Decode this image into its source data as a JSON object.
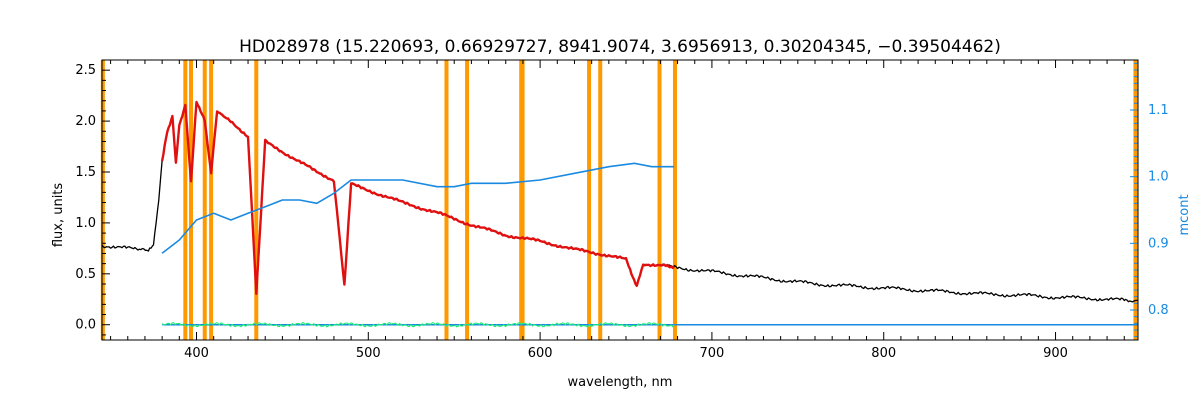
{
  "chart_data": {
    "type": "line",
    "title": "HD028978    (15.220693, 0.66929727, 8941.9074, 3.6956913, 0.30204345, −0.39504462)",
    "xlabel": "wavelength, nm",
    "ylabel": "flux, units",
    "y2label": "mcont",
    "xlim": [
      345,
      948
    ],
    "ylim": [
      -0.15,
      2.6
    ],
    "y2lim": [
      0.755,
      1.175
    ],
    "xticks": [
      400,
      500,
      600,
      700,
      800,
      900
    ],
    "yticks": [
      0.0,
      0.5,
      1.0,
      1.5,
      2.0,
      2.5
    ],
    "ytick_labels": [
      "0.0",
      "0.5",
      "1.0",
      "1.5",
      "2.0",
      "2.5"
    ],
    "y2ticks": [
      0.8,
      0.9,
      1.0,
      1.1
    ],
    "y2tick_labels": [
      "0.8",
      "0.9",
      "1.0",
      "1.1"
    ],
    "grid": false,
    "colors": {
      "observed": "#000000",
      "model": "#e01010",
      "residual": "#22ee77",
      "mcont": "#1a8ae0",
      "mask": "#ff9900"
    },
    "mask_lines": [
      345.5,
      393.5,
      396.8,
      404.8,
      408.5,
      434.8,
      545.5,
      557.5,
      589.0,
      589.8,
      628.5,
      635.0,
      669.5,
      678.5,
      946.5
    ],
    "series": [
      {
        "role": "observed",
        "x": [
          345,
          355,
          365,
          372,
          375,
          378,
          380,
          383,
          386,
          388,
          390,
          393.5,
          396.8,
          400,
          404.8,
          408.5,
          412,
          415,
          420,
          430,
          434.8,
          440,
          450,
          460,
          470,
          480,
          486.1,
          490,
          500,
          520,
          540,
          560,
          580,
          600,
          620,
          640,
          650,
          656.3,
          660,
          680,
          700,
          720,
          740,
          760,
          780,
          800,
          820,
          840,
          860,
          880,
          900,
          920,
          940,
          948
        ],
        "y": [
          0.78,
          0.76,
          0.74,
          0.72,
          0.8,
          1.2,
          1.6,
          1.9,
          2.05,
          1.6,
          1.95,
          2.15,
          1.4,
          2.2,
          2.0,
          1.5,
          2.1,
          2.05,
          2.0,
          1.85,
          0.3,
          1.8,
          1.7,
          1.6,
          1.5,
          1.42,
          0.4,
          1.38,
          1.32,
          1.2,
          1.1,
          0.98,
          0.88,
          0.82,
          0.74,
          0.68,
          0.64,
          0.38,
          0.6,
          0.56,
          0.52,
          0.48,
          0.44,
          0.4,
          0.38,
          0.36,
          0.34,
          0.32,
          0.3,
          0.29,
          0.27,
          0.26,
          0.24,
          0.24
        ]
      },
      {
        "role": "model",
        "x": [
          380,
          383,
          386,
          388,
          390,
          393.5,
          396.8,
          400,
          404.8,
          408.5,
          412,
          415,
          420,
          430,
          434.8,
          440,
          450,
          460,
          470,
          480,
          486.1,
          490,
          500,
          520,
          540,
          560,
          580,
          600,
          620,
          640,
          650,
          656.3,
          660,
          670,
          678
        ],
        "y": [
          1.6,
          1.9,
          2.05,
          1.6,
          1.95,
          2.15,
          1.4,
          2.2,
          2.0,
          1.5,
          2.1,
          2.05,
          2.0,
          1.85,
          0.3,
          1.8,
          1.7,
          1.6,
          1.5,
          1.42,
          0.4,
          1.38,
          1.32,
          1.2,
          1.1,
          0.98,
          0.88,
          0.82,
          0.74,
          0.68,
          0.64,
          0.38,
          0.6,
          0.58,
          0.57
        ]
      },
      {
        "role": "residual",
        "x": [
          380,
          678
        ],
        "y": [
          0.0,
          0.0
        ]
      },
      {
        "role": "mcont",
        "axis": "right",
        "x": [
          380,
          390,
          400,
          410,
          420,
          430,
          440,
          450,
          460,
          470,
          480,
          490,
          500,
          520,
          540,
          550,
          560,
          580,
          600,
          620,
          640,
          655,
          665,
          678
        ],
        "y": [
          0.885,
          0.905,
          0.935,
          0.945,
          0.935,
          0.945,
          0.955,
          0.965,
          0.965,
          0.96,
          0.975,
          0.995,
          0.995,
          0.995,
          0.985,
          0.985,
          0.99,
          0.99,
          0.995,
          1.005,
          1.015,
          1.02,
          1.015,
          1.015
        ]
      }
    ],
    "baseline_line": {
      "axis": "left",
      "y": 0.0,
      "x": [
        380,
        948
      ]
    }
  }
}
